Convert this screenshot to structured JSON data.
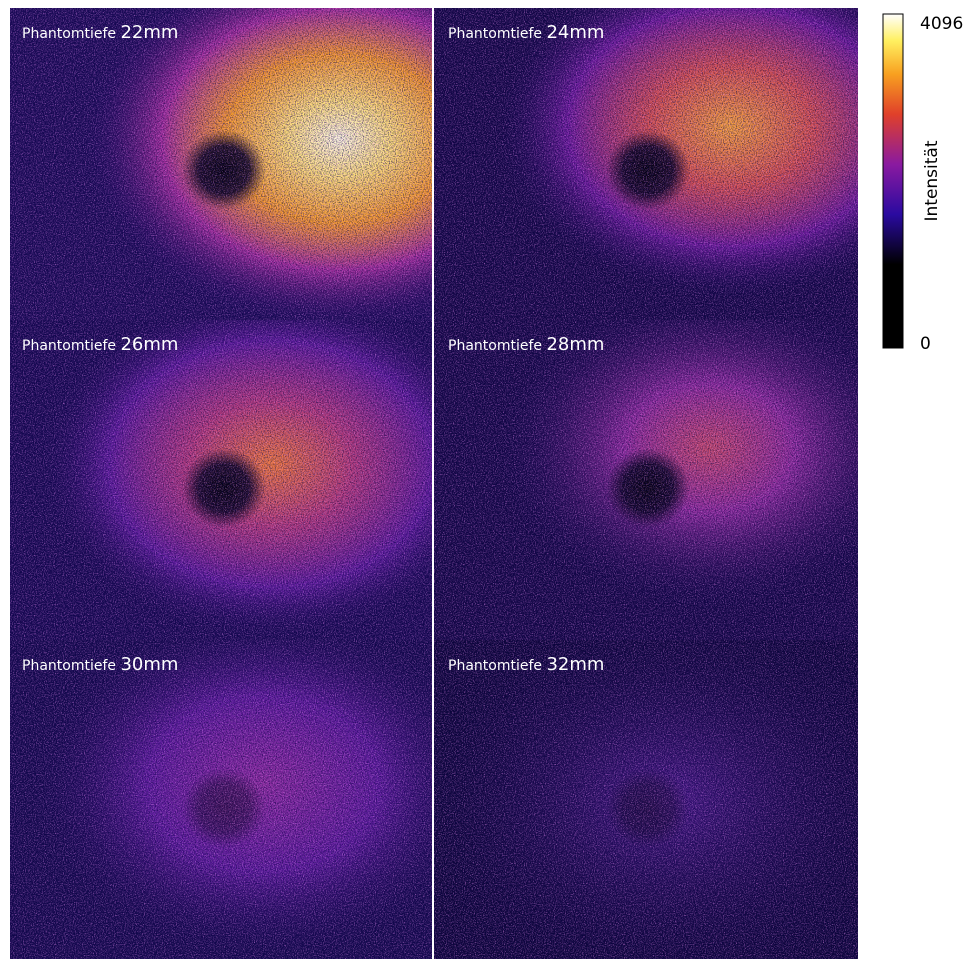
{
  "panels": [
    {
      "label": "Phantomtiefe",
      "depth": "22mm"
    },
    {
      "label": "Phantomtiefe",
      "depth": "24mm"
    },
    {
      "label": "Phantomtiefe",
      "depth": "26mm"
    },
    {
      "label": "Phantomtiefe",
      "depth": "28mm"
    },
    {
      "label": "Phantomtiefe",
      "depth": "30mm"
    },
    {
      "label": "Phantomtiefe",
      "depth": "32mm"
    }
  ],
  "colorbar": {
    "max": "4096",
    "min": "0",
    "label": "Intensität"
  }
}
